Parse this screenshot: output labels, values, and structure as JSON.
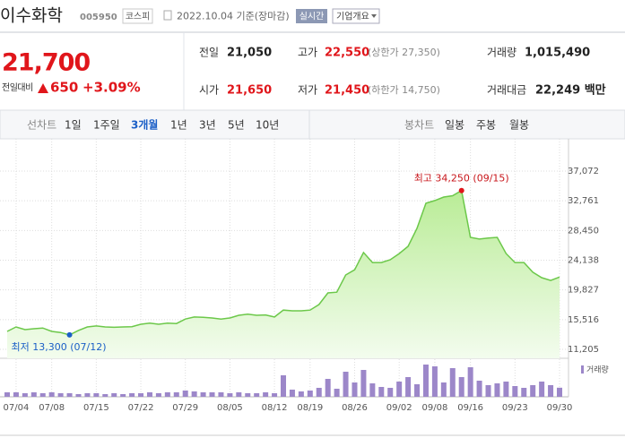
{
  "header": {
    "name": "이수화학",
    "code": "005950",
    "market": "코스피",
    "date": "2022.10.04 기준(장마감)",
    "realtime": "실시간",
    "company": "기업개요"
  },
  "price": {
    "current": "21,700",
    "change_label": "전일대비",
    "change": "650",
    "rate": "+3.09%"
  },
  "stats": [
    [
      {
        "label": "전일",
        "value": "21,050",
        "color": "#222"
      },
      {
        "label": "고가",
        "value": "22,550",
        "note": "(상한가 27,350)",
        "color": "#e0161b"
      },
      {
        "label": "거래량",
        "value": "1,015,490",
        "color": "#222"
      }
    ],
    [
      {
        "label": "시가",
        "value": "21,650",
        "color": "#e0161b"
      },
      {
        "label": "저가",
        "value": "21,450",
        "note": "(하한가 14,750)",
        "color": "#e0161b"
      },
      {
        "label": "거래대금",
        "value": "22,249 백만",
        "color": "#222"
      }
    ]
  ],
  "tabs": {
    "line_label": "선차트",
    "periods": [
      "1일",
      "1주일",
      "3개월",
      "1년",
      "3년",
      "5년",
      "10년"
    ],
    "selected": 2,
    "candle_label": "봉차트",
    "candles": [
      "일봉",
      "주봉",
      "월봉"
    ]
  },
  "chart_data": {
    "type": "area",
    "categories": [
      null,
      "07/04",
      null,
      null,
      null,
      "07/08",
      null,
      null,
      null,
      null,
      "07/15",
      null,
      null,
      null,
      null,
      "07/22",
      null,
      null,
      null,
      null,
      "07/29",
      null,
      null,
      null,
      null,
      "08/05",
      null,
      null,
      null,
      null,
      "08/12",
      null,
      null,
      null,
      "08/19",
      null,
      null,
      null,
      null,
      "08/26",
      null,
      null,
      null,
      null,
      "09/02",
      null,
      null,
      null,
      "09/08",
      null,
      null,
      null,
      "09/16",
      null,
      null,
      null,
      null,
      "09/23",
      null,
      null,
      null,
      null,
      "09/30"
    ],
    "series": [
      {
        "color": "#6cc84a",
        "values": [
          13800,
          14450,
          14065,
          14200,
          14300,
          13800,
          13650,
          13300,
          13950,
          14450,
          14600,
          14450,
          14400,
          14450,
          14500,
          14850,
          15000,
          14850,
          15000,
          14950,
          15600,
          15900,
          15850,
          15750,
          15600,
          15750,
          16150,
          16300,
          16150,
          16200,
          15900,
          16900,
          16800,
          16800,
          16900,
          17700,
          19400,
          19500,
          22000,
          22750,
          25250,
          23800,
          23800,
          24200,
          25100,
          26150,
          28750,
          32400,
          32800,
          33300,
          33500,
          34250,
          27450,
          27200,
          27350,
          27450,
          25100,
          23800,
          23800,
          22400,
          21600,
          21200,
          21700
        ]
      }
    ],
    "ylim": [
      11205,
      37072
    ],
    "yticks": [
      {
        "value": 11205,
        "label": "11,205"
      },
      {
        "value": 15516,
        "label": "15,516"
      },
      {
        "value": 19827,
        "label": "19,827"
      },
      {
        "value": 24138,
        "label": "24,138"
      },
      {
        "value": 28450,
        "label": "28,450"
      },
      {
        "value": 32761,
        "label": "32,761"
      },
      {
        "value": 37072,
        "label": "37,072"
      }
    ],
    "grid": true,
    "max_label": "최고 34,250 (09/15)",
    "max_index": 51,
    "min_label": "최저 13,300 (07/12)",
    "min_index": 7,
    "volume": {
      "name": "거래량",
      "color": "#9c87c9",
      "ylim": [
        0,
        3800000
      ],
      "values": [
        500000,
        500000,
        400000,
        500000,
        400000,
        500000,
        400000,
        400000,
        300000,
        400000,
        400000,
        300000,
        400000,
        300000,
        400000,
        400000,
        500000,
        400000,
        500000,
        500000,
        700000,
        600000,
        500000,
        500000,
        500000,
        400000,
        500000,
        400000,
        400000,
        500000,
        400000,
        2400000,
        800000,
        600000,
        700000,
        1000000,
        2000000,
        900000,
        2800000,
        1600000,
        3000000,
        1500000,
        1100000,
        1000000,
        1700000,
        2200000,
        1400000,
        3600000,
        3400000,
        1600000,
        3200000,
        2200000,
        3300000,
        1800000,
        1300000,
        1500000,
        1700000,
        1200000,
        1000000,
        1300000,
        1700000,
        1300000,
        1015490
      ]
    }
  }
}
